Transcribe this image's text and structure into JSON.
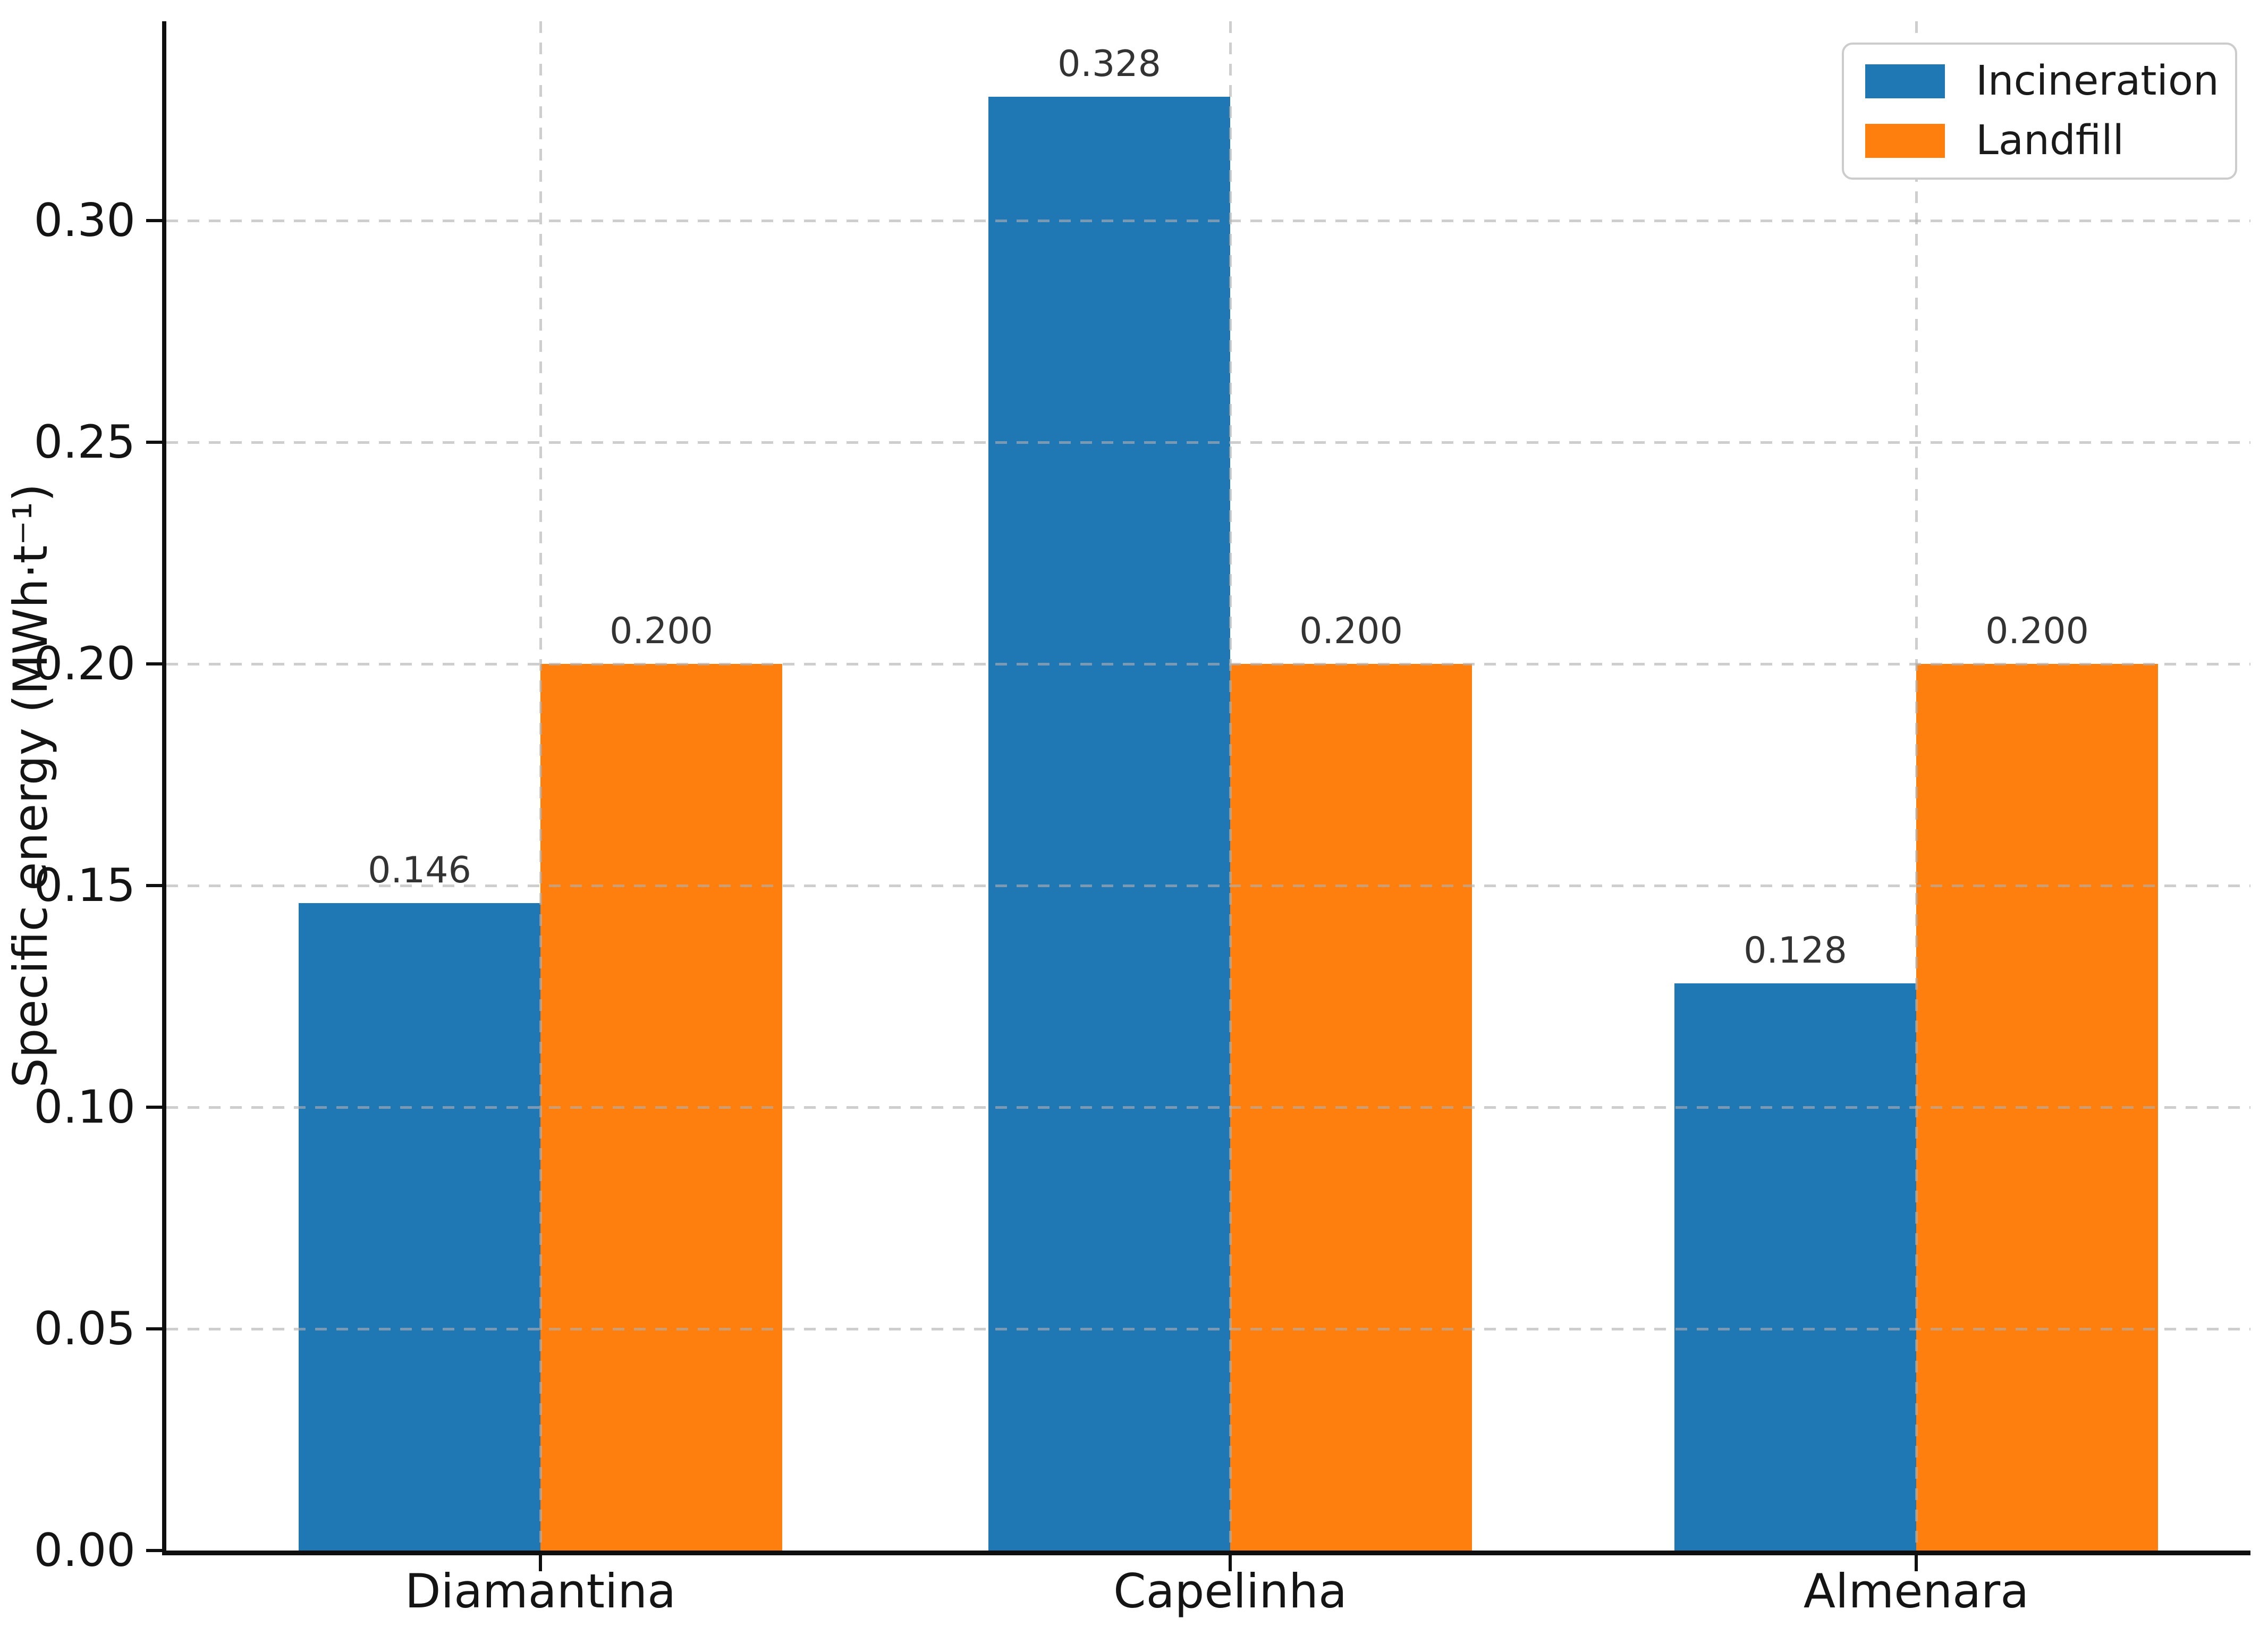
{
  "chart_data": {
    "type": "bar",
    "title": "",
    "xlabel": "",
    "ylabel": "Specific energy (MWh·t⁻¹)",
    "categories": [
      "Diamantina",
      "Capelinha",
      "Almenara"
    ],
    "series": [
      {
        "name": "Incineration",
        "color": "#1f77b4",
        "values": [
          0.146,
          0.328,
          0.128
        ],
        "labels": [
          "0.146",
          "0.328",
          "0.128"
        ]
      },
      {
        "name": "Landfill",
        "color": "#ff7f0e",
        "values": [
          0.2,
          0.2,
          0.2
        ],
        "labels": [
          "0.200",
          "0.200",
          "0.200"
        ]
      }
    ],
    "ylim": [
      0,
      0.345
    ],
    "yticks": [
      {
        "value": 0.0,
        "label": "0.00"
      },
      {
        "value": 0.05,
        "label": "0.05"
      },
      {
        "value": 0.1,
        "label": "0.10"
      },
      {
        "value": 0.15,
        "label": "0.15"
      },
      {
        "value": 0.2,
        "label": "0.20"
      },
      {
        "value": 0.25,
        "label": "0.25"
      },
      {
        "value": 0.3,
        "label": "0.30"
      }
    ],
    "grid": {
      "horizontal": true,
      "vertical": true,
      "style": "dashed",
      "color": "#c9c9c9"
    },
    "legend": {
      "position": "upper right",
      "entries": [
        "Incineration",
        "Landfill"
      ]
    }
  }
}
